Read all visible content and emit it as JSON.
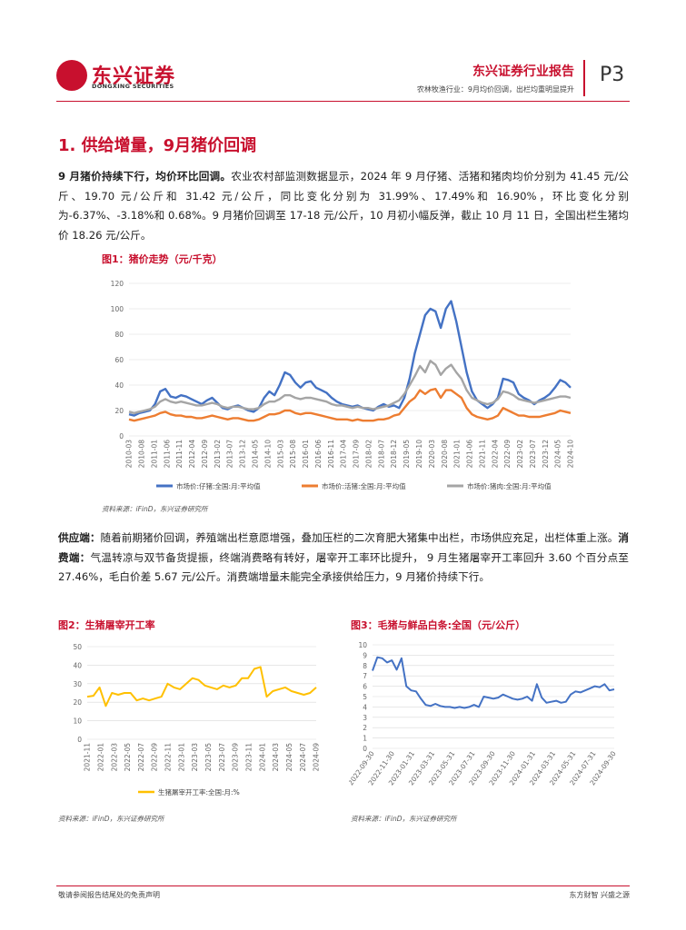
{
  "header": {
    "logo_cn": "东兴证券",
    "logo_en": "DONGXING SECURITIES",
    "report_title": "东兴证券行业报告",
    "report_sub": "农林牧渔行业：9月均价回调，出栏均重明显提升",
    "page": "P3",
    "brand_color": "#c8102e"
  },
  "section": {
    "title": "1. 供给增量，9月猪价回调"
  },
  "para1": {
    "bold": "9 月猪价持续下行，均价环比回调。",
    "text": "农业农村部监测数据显示，2024 年 9 月仔猪、活猪和猪肉均价分别为 41.45 元/公斤、19.70 元/公斤和 31.42 元/公斤，同比变化分别为 31.99%、17.49%和 16.90%，环比变化分别为-6.37%、-3.18%和 0.68%。9 月猪价回调至 17-18 元/公斤，10 月初小幅反弹，截止 10 月 11 日，全国出栏生猪均价 18.26 元/公斤。"
  },
  "para2": {
    "bold1": "供应端：",
    "text1": "随着前期猪价回调，养殖端出栏意愿增强，叠加压栏的二次育肥大猪集中出栏，市场供应充足，出栏体重上涨。",
    "bold2": "消费端：",
    "text2": "气温转凉与双节备货提振，终端消费略有转好，屠宰开工率环比提升， 9 月生猪屠宰开工率回升 3.60 个百分点至 27.46%，毛白价差 5.67 元/公斤。消费端增量未能完全承接供给压力，9 月猪价持续下行。"
  },
  "fig1": {
    "title": "图1：猪价走势（元/千克）",
    "source": "资料来源：iFinD，东兴证券研究所"
  },
  "fig2": {
    "title": "图2：生猪屠宰开工率",
    "source": "资料来源：iFinD，东兴证券研究所"
  },
  "fig3": {
    "title": "图3：毛猪与鲜品白条:全国（元/公斤）",
    "source": "资料来源：iFinD，东兴证券研究所"
  },
  "footer": {
    "left": "敬请参阅报告结尾处的免责声明",
    "right": "东方财智  兴盛之源"
  },
  "chart_data": [
    {
      "type": "line",
      "ylim": [
        0,
        120
      ],
      "yticks": [
        0,
        20,
        40,
        60,
        80,
        100,
        120
      ],
      "xticks": [
        "2010-03",
        "2010-08",
        "2011-01",
        "2011-06",
        "2011-11",
        "2012-04",
        "2012-09",
        "2013-02",
        "2013-07",
        "2013-12",
        "2014-05",
        "2014-10",
        "2015-03",
        "2015-08",
        "2016-01",
        "2016-06",
        "2016-11",
        "2017-04",
        "2017-09",
        "2018-02",
        "2018-07",
        "2018-12",
        "2019-05",
        "2019-10",
        "2020-03",
        "2020-08",
        "2021-01",
        "2021-06",
        "2021-11",
        "2022-04",
        "2022-09",
        "2023-02",
        "2023-07",
        "2023-12",
        "2024-05",
        "2024-10"
      ],
      "series": [
        {
          "name": "市场价:仔猪:全国:月:平均值",
          "color": "#4472c4",
          "values": [
            17,
            16,
            18,
            19,
            20,
            25,
            35,
            37,
            31,
            30,
            32,
            31,
            29,
            27,
            25,
            28,
            30,
            26,
            22,
            21,
            23,
            24,
            22,
            20,
            19,
            22,
            30,
            35,
            32,
            40,
            50,
            48,
            42,
            38,
            42,
            43,
            38,
            36,
            34,
            30,
            27,
            25,
            24,
            23,
            24,
            22,
            21,
            20,
            23,
            25,
            23,
            24,
            22,
            30,
            45,
            65,
            80,
            95,
            100,
            98,
            85,
            100,
            106,
            90,
            70,
            50,
            35,
            28,
            25,
            22,
            25,
            30,
            45,
            44,
            42,
            33,
            30,
            28,
            25,
            28,
            30,
            33,
            38,
            44,
            42,
            38
          ]
        },
        {
          "name": "市场价:活猪:全国:月:平均值",
          "color": "#ed7d31",
          "values": [
            13,
            12,
            13,
            14,
            15,
            16,
            18,
            19,
            17,
            16,
            16,
            15,
            15,
            14,
            14,
            15,
            16,
            15,
            14,
            13,
            14,
            14,
            13,
            12,
            12,
            13,
            15,
            17,
            17,
            18,
            20,
            20,
            18,
            17,
            18,
            18,
            17,
            16,
            15,
            14,
            13,
            13,
            13,
            12,
            13,
            12,
            12,
            12,
            13,
            13,
            14,
            16,
            17,
            22,
            27,
            30,
            36,
            33,
            36,
            37,
            30,
            36,
            36,
            33,
            30,
            22,
            17,
            15,
            14,
            13,
            14,
            16,
            22,
            20,
            18,
            16,
            16,
            15,
            15,
            15,
            16,
            17,
            18,
            20,
            19,
            18
          ]
        },
        {
          "name": "市场价:猪肉:全国:月:平均值",
          "color": "#a5a5a5",
          "values": [
            19,
            18,
            19,
            20,
            21,
            23,
            27,
            29,
            27,
            26,
            27,
            26,
            25,
            24,
            24,
            25,
            26,
            25,
            23,
            22,
            23,
            23,
            22,
            21,
            21,
            22,
            25,
            27,
            27,
            29,
            32,
            32,
            30,
            29,
            30,
            30,
            29,
            28,
            27,
            25,
            24,
            24,
            23,
            22,
            23,
            22,
            22,
            21,
            22,
            23,
            24,
            26,
            28,
            33,
            40,
            47,
            55,
            50,
            59,
            56,
            48,
            53,
            56,
            50,
            45,
            36,
            30,
            28,
            26,
            25,
            26,
            29,
            35,
            34,
            32,
            29,
            28,
            27,
            26,
            27,
            28,
            29,
            30,
            31,
            31,
            30
          ]
        }
      ]
    },
    {
      "type": "line",
      "ylim": [
        0,
        50
      ],
      "yticks": [
        0,
        10,
        20,
        30,
        40,
        50
      ],
      "xticks": [
        "2021-11",
        "2022-01",
        "2022-03",
        "2022-05",
        "2022-07",
        "2022-09",
        "2022-11",
        "2023-01",
        "2023-03",
        "2023-05",
        "2023-07",
        "2023-09",
        "2023-11",
        "2024-01",
        "2024-03",
        "2024-05",
        "2024-07",
        "2024-09"
      ],
      "series": [
        {
          "name": "生猪屠宰开工率:全国:月:%",
          "color": "#ffc000",
          "values": [
            23,
            23.5,
            28,
            18,
            25,
            24,
            25,
            25,
            21,
            22,
            21,
            22,
            23,
            30,
            28,
            27,
            30,
            33,
            32,
            29,
            28,
            27,
            29,
            28,
            29,
            33,
            33,
            38,
            39,
            23,
            26,
            27,
            28,
            26,
            25,
            24,
            25,
            28
          ]
        }
      ]
    },
    {
      "type": "line",
      "ylim": [
        0,
        10
      ],
      "yticks": [
        0,
        1,
        2,
        3,
        4,
        5,
        6,
        7,
        8,
        9,
        10
      ],
      "xticks": [
        "2022-09-30",
        "2022-11-30",
        "2023-01-31",
        "2023-03-31",
        "2023-05-31",
        "2023-07-31",
        "2023-09-30",
        "2023-11-30",
        "2024-01-31",
        "2024-03-31",
        "2024-05-31",
        "2024-07-31",
        "2024-09-30"
      ],
      "series": [
        {
          "name": "",
          "color": "#4472c4",
          "values": [
            7.5,
            8.8,
            8.7,
            8.3,
            8.5,
            7.6,
            8.7,
            6.0,
            5.6,
            5.5,
            4.8,
            4.2,
            4.1,
            4.3,
            4.1,
            4.0,
            4.0,
            3.9,
            4.0,
            3.9,
            4.0,
            4.2,
            4.0,
            5.0,
            4.9,
            4.8,
            4.9,
            5.2,
            5.0,
            4.8,
            4.7,
            4.8,
            5.0,
            4.6,
            6.2,
            4.9,
            4.4,
            4.5,
            4.6,
            4.4,
            4.5,
            5.2,
            5.5,
            5.4,
            5.6,
            5.8,
            6.0,
            5.9,
            6.2,
            5.6,
            5.7
          ]
        }
      ]
    }
  ]
}
